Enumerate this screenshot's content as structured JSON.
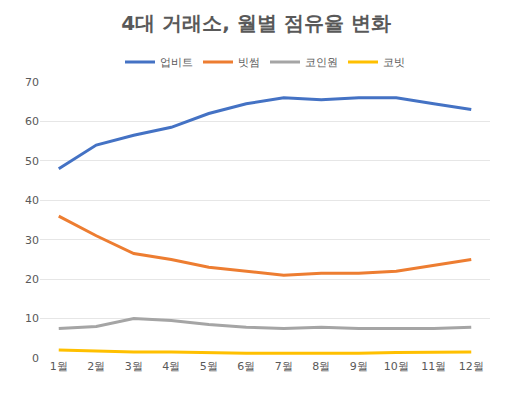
{
  "chart_data": {
    "type": "line",
    "title": "4대 거래소, 월별 점유율 변화",
    "categories": [
      "1월",
      "2월",
      "3월",
      "4월",
      "5월",
      "6월",
      "7월",
      "8월",
      "9월",
      "10월",
      "11월",
      "12월"
    ],
    "series": [
      {
        "name": "업비트",
        "color": "#4472c4",
        "values": [
          48,
          54,
          56.5,
          58.5,
          62,
          64.5,
          66,
          65.5,
          66,
          66,
          64.5,
          63
        ]
      },
      {
        "name": "빗썸",
        "color": "#ed7d31",
        "values": [
          36,
          31,
          26.5,
          25,
          23,
          22,
          21,
          21.5,
          21.5,
          22,
          23.5,
          25
        ]
      },
      {
        "name": "코인원",
        "color": "#a5a5a5",
        "values": [
          7.5,
          8,
          10,
          9.5,
          8.5,
          7.8,
          7.5,
          7.8,
          7.5,
          7.5,
          7.5,
          7.8
        ]
      },
      {
        "name": "코빗",
        "color": "#ffc000",
        "values": [
          2,
          1.8,
          1.5,
          1.5,
          1.3,
          1.2,
          1.2,
          1.2,
          1.2,
          1.4,
          1.5,
          1.5
        ]
      }
    ],
    "ylim": [
      0,
      70
    ],
    "yticks": [
      0,
      10,
      20,
      30,
      40,
      50,
      60,
      70
    ],
    "grid": true,
    "legend": "top"
  }
}
